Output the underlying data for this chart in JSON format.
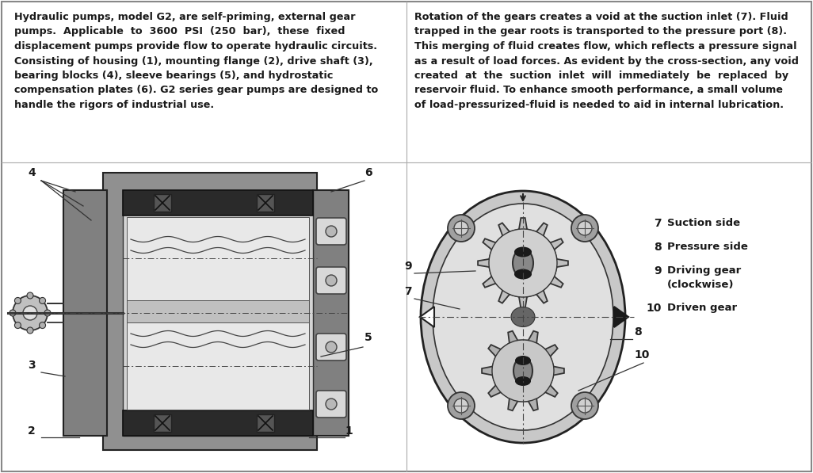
{
  "bg_color": "#ffffff",
  "border_color": "#000000",
  "text_color": "#1a1a1a",
  "left_para": "Hydraulic pumps, model G2, are self-priming, external gear\npumps.  Applicable  to  3600  PSI  (250  bar),  these  fixed\ndisplacement pumps provide flow to operate hydraulic circuits.\nConsisting of housing (1), mounting flange (2), drive shaft (3),\nbearing blocks (4), sleeve bearings (5), and hydrostatic\ncompensation plates (6). G2 series gear pumps are designed to\nhandle the rigors of industrial use.",
  "right_para": "Rotation of the gears creates a void at the suction inlet (7). Fluid\ntrapped in the gear roots is transported to the pressure port (8).\nThis merging of fluid creates flow, which reflects a pressure signal\nas a result of load forces. As evident by the cross-section, any void\ncreated  at  the  suction  inlet  will  immediately  be  replaced  by\nreservoir fluid. To enhance smooth performance, a small volume\nof load-pressurized-fluid is needed to aid in internal lubrication.",
  "legend_items": [
    {
      "num": "7",
      "label": "Suction side"
    },
    {
      "num": "8",
      "label": "Pressure side"
    },
    {
      "num": "9",
      "label": "Driving gear\n(clockwise)"
    },
    {
      "num": "10",
      "label": "Driven gear"
    }
  ],
  "gray_light": "#c8c8c8",
  "gray_mid": "#a0a0a0",
  "gray_dark": "#707070",
  "gray_darker": "#505050",
  "black": "#1a1a1a"
}
